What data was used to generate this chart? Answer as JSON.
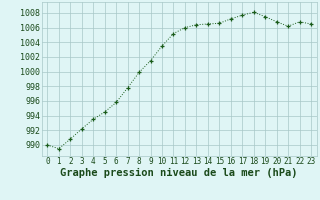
{
  "x": [
    0,
    1,
    2,
    3,
    4,
    5,
    6,
    7,
    8,
    9,
    10,
    11,
    12,
    13,
    14,
    15,
    16,
    17,
    18,
    19,
    20,
    21,
    22,
    23
  ],
  "y": [
    990.0,
    989.5,
    990.8,
    992.2,
    993.5,
    994.5,
    995.8,
    997.8,
    999.9,
    1001.5,
    1003.5,
    1005.2,
    1006.0,
    1006.4,
    1006.5,
    1006.6,
    1007.2,
    1007.7,
    1008.1,
    1007.5,
    1006.8,
    1006.2,
    1006.8,
    1006.5
  ],
  "line_color": "#1a5c1a",
  "marker": "+",
  "background_color": "#dff5f5",
  "grid_color": "#a8c8c8",
  "xlabel": "Graphe pression niveau de la mer (hPa)",
  "xlabel_fontsize": 7.5,
  "ylabel_ticks": [
    990,
    992,
    994,
    996,
    998,
    1000,
    1002,
    1004,
    1006,
    1008
  ],
  "xlim": [
    -0.5,
    23.5
  ],
  "ylim": [
    988.5,
    1009.5
  ],
  "xticks": [
    0,
    1,
    2,
    3,
    4,
    5,
    6,
    7,
    8,
    9,
    10,
    11,
    12,
    13,
    14,
    15,
    16,
    17,
    18,
    19,
    20,
    21,
    22,
    23
  ],
  "xtick_fontsize": 5.5,
  "ytick_fontsize": 6.0
}
